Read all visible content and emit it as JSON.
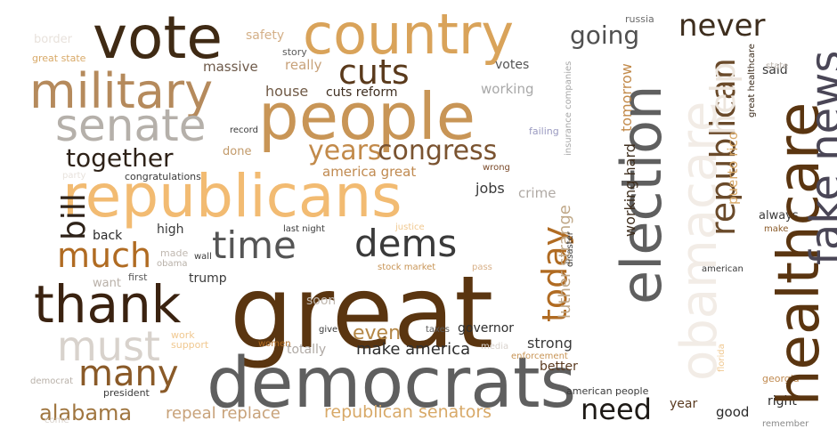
{
  "words": [
    {
      "text": "great",
      "color": "#5a3510"
    },
    {
      "text": "democrats",
      "color": "#5f5f5f"
    },
    {
      "text": "people",
      "color": "#c89556"
    },
    {
      "text": "republicans",
      "color": "#f2bb72"
    },
    {
      "text": "vote",
      "color": "#3f2a14"
    },
    {
      "text": "country",
      "color": "#d9a35a"
    },
    {
      "text": "military",
      "color": "#b58a5c"
    },
    {
      "text": "thank",
      "color": "#3a2210"
    },
    {
      "text": "senate",
      "color": "#b5b0aa"
    },
    {
      "text": "must",
      "color": "#d8d2cc"
    },
    {
      "text": "time",
      "color": "#555555"
    },
    {
      "text": "dems",
      "color": "#3a3a3a"
    },
    {
      "text": "many",
      "color": "#8a5a28"
    },
    {
      "text": "much",
      "color": "#b06b22"
    },
    {
      "text": "cuts",
      "color": "#5a3a1c"
    },
    {
      "text": "together",
      "color": "#2e2218"
    },
    {
      "text": "years",
      "color": "#c28a4a"
    },
    {
      "text": "congress",
      "color": "#7a5330"
    },
    {
      "text": "need",
      "color": "#1e1a16"
    },
    {
      "text": "never",
      "color": "#3e2e1e"
    },
    {
      "text": "going",
      "color": "#505050"
    },
    {
      "text": "alabama",
      "color": "#a07640"
    },
    {
      "text": "repeal replace",
      "color": "#c8a27a"
    },
    {
      "text": "republican senators",
      "color": "#d8a968"
    },
    {
      "text": "make america",
      "color": "#2e2e2e"
    },
    {
      "text": "even",
      "color": "#b48746"
    },
    {
      "text": "house",
      "color": "#705a46"
    },
    {
      "text": "cuts reform",
      "color": "#3e2e20"
    },
    {
      "text": "really",
      "color": "#c8a27a"
    },
    {
      "text": "massive",
      "color": "#6e5a4a"
    },
    {
      "text": "safety",
      "color": "#d4b088"
    },
    {
      "text": "working",
      "color": "#a8a8a8"
    },
    {
      "text": "votes",
      "color": "#555555"
    },
    {
      "text": "america great",
      "color": "#c08a50"
    },
    {
      "text": "jobs",
      "color": "#3a3a3a"
    },
    {
      "text": "crime",
      "color": "#b0aaa5"
    },
    {
      "text": "strong",
      "color": "#3a3a3a"
    },
    {
      "text": "governor",
      "color": "#2e2e2e"
    },
    {
      "text": "totally",
      "color": "#b0aaa5"
    },
    {
      "text": "better",
      "color": "#5a3a20"
    },
    {
      "text": "year",
      "color": "#5a3a20"
    },
    {
      "text": "good",
      "color": "#2a2a2a"
    },
    {
      "text": "right",
      "color": "#2a2a2a"
    },
    {
      "text": "always",
      "color": "#3a3a3a"
    },
    {
      "text": "said",
      "color": "#3a3a3a"
    },
    {
      "text": "state",
      "color": "#b8b0a8"
    },
    {
      "text": "back",
      "color": "#2a2a2a"
    },
    {
      "text": "high",
      "color": "#3a3a3a"
    },
    {
      "text": "want",
      "color": "#b8b0a8"
    },
    {
      "text": "trump",
      "color": "#3a3a3a"
    },
    {
      "text": "soon",
      "color": "#c0b8b0"
    },
    {
      "text": "done",
      "color": "#c29a6a"
    },
    {
      "text": "record",
      "color": "#3a3a3a"
    },
    {
      "text": "congratulations",
      "color": "#3a3a3a"
    },
    {
      "text": "border",
      "color": "#e8e2dc"
    },
    {
      "text": "great state",
      "color": "#d8a968"
    },
    {
      "text": "story",
      "color": "#5a5a5a"
    },
    {
      "text": "russia",
      "color": "#6a6a6a"
    },
    {
      "text": "party",
      "color": "#e8e2dc"
    },
    {
      "text": "wrong",
      "color": "#7a4a2a"
    },
    {
      "text": "failing",
      "color": "#9a9ac0"
    },
    {
      "text": "last night",
      "color": "#3a3a3a"
    },
    {
      "text": "justice",
      "color": "#f0c890"
    },
    {
      "text": "wall",
      "color": "#3a3a3a"
    },
    {
      "text": "made",
      "color": "#c0b8b0"
    },
    {
      "text": "obama",
      "color": "#b8b0a8"
    },
    {
      "text": "first",
      "color": "#5a5a5a"
    },
    {
      "text": "stock market",
      "color": "#c89556"
    },
    {
      "text": "pass",
      "color": "#d8b088"
    },
    {
      "text": "make",
      "color": "#8a5a28"
    },
    {
      "text": "american",
      "color": "#3a3a3a"
    },
    {
      "text": "give",
      "color": "#3a3a3a"
    },
    {
      "text": "taxes",
      "color": "#5a5a5a"
    },
    {
      "text": "work",
      "color": "#f0c890"
    },
    {
      "text": "support",
      "color": "#f0c890"
    },
    {
      "text": "women",
      "color": "#b06b22"
    },
    {
      "text": "media",
      "color": "#d8d2cc"
    },
    {
      "text": "enforcement",
      "color": "#c89556"
    },
    {
      "text": "american people",
      "color": "#3a3a3a"
    },
    {
      "text": "president",
      "color": "#3a3a3a"
    },
    {
      "text": "democrat",
      "color": "#b8b0a8"
    },
    {
      "text": "come",
      "color": "#d8d2cc"
    },
    {
      "text": "georgia",
      "color": "#c08a50"
    },
    {
      "text": "remember",
      "color": "#8a8a8a"
    },
    {
      "text": "election",
      "color": "#5f5f5f"
    },
    {
      "text": "obamacare",
      "color": "#f2ece6"
    },
    {
      "text": "healthcare",
      "color": "#5a3510"
    },
    {
      "text": "fake news",
      "color": "#4a4656"
    },
    {
      "text": "republican",
      "color": "#6a4a2a"
    },
    {
      "text": "help",
      "color": "#ede6de"
    },
    {
      "text": "today",
      "color": "#b06b22"
    },
    {
      "text": "bill",
      "color": "#2e2218"
    },
    {
      "text": "luther strange",
      "color": "#c0a888"
    },
    {
      "text": "working hard",
      "color": "#3e2e1e"
    },
    {
      "text": "tomorrow",
      "color": "#c28a4a"
    },
    {
      "text": "puerto rico",
      "color": "#d8a968"
    },
    {
      "text": "insurance companies",
      "color": "#a8a8a8"
    },
    {
      "text": "disaster",
      "color": "#3a3a3a"
    },
    {
      "text": "great healthcare",
      "color": "#3a2a1a"
    },
    {
      "text": "florida",
      "color": "#f0c890"
    }
  ]
}
